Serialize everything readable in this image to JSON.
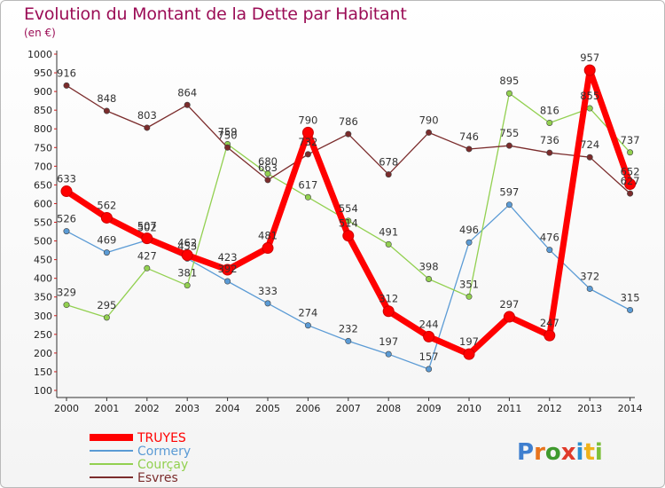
{
  "chart_data": {
    "type": "line",
    "title": "Evolution du Montant de la Dette par Habitant",
    "subtitle": "(en €)",
    "xlabel": "",
    "ylabel": "",
    "x": [
      2000,
      2001,
      2002,
      2003,
      2004,
      2005,
      2006,
      2007,
      2008,
      2009,
      2010,
      2011,
      2012,
      2013,
      2014
    ],
    "ylim": [
      100,
      1000
    ],
    "yticks": [
      100,
      150,
      200,
      250,
      300,
      350,
      400,
      450,
      500,
      550,
      600,
      650,
      700,
      750,
      800,
      850,
      900,
      950,
      1000
    ],
    "grid": false,
    "legend_position": "bottom-left",
    "series": [
      {
        "name": "TRUYES",
        "color": "#ff0000",
        "highlight": true,
        "values": [
          633,
          562,
          507,
          462,
          423,
          481,
          790,
          514,
          312,
          244,
          197,
          297,
          247,
          957,
          652
        ]
      },
      {
        "name": "Cormery",
        "color": "#5b9bd5",
        "highlight": false,
        "values": [
          526,
          469,
          502,
          453,
          392,
          333,
          274,
          232,
          197,
          157,
          496,
          597,
          476,
          372,
          315
        ]
      },
      {
        "name": "Courçay",
        "color": "#92d050",
        "highlight": false,
        "values": [
          329,
          295,
          427,
          381,
          759,
          680,
          617,
          554,
          491,
          398,
          351,
          895,
          816,
          855,
          737
        ]
      },
      {
        "name": "Esvres",
        "color": "#7b2c2c",
        "highlight": false,
        "values": [
          916,
          848,
          803,
          864,
          750,
          663,
          732,
          786,
          678,
          790,
          746,
          755,
          736,
          724,
          627
        ]
      }
    ]
  },
  "branding": {
    "logo_text": "Proxiti",
    "letters": [
      "P",
      "r",
      "o",
      "x",
      "i",
      "t",
      "i"
    ],
    "letter_colors": [
      "#3f7fcf",
      "#e8731c",
      "#3f9a2e",
      "#e03a2a",
      "#2d8fd0",
      "#f0b21b",
      "#7cbf3a"
    ]
  }
}
